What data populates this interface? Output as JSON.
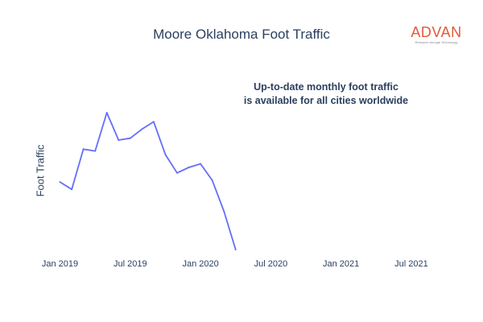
{
  "chart_data": {
    "type": "line",
    "title": "Moore Oklahoma Foot Traffic",
    "xlabel": "",
    "ylabel": "Foot Traffic",
    "x_ticks": [
      "Jan 2019",
      "Jul 2019",
      "Jan 2020",
      "Jul 2020",
      "Jan 2021",
      "Jul 2021"
    ],
    "xlim": [
      "2018-12-01",
      "2021-09-01"
    ],
    "grid": false,
    "annotation": [
      "Up-to-date monthly foot traffic",
      "is available for all cities worldwide"
    ],
    "series": [
      {
        "color": "#636efa",
        "x": [
          "2019-01",
          "2019-02",
          "2019-03",
          "2019-04",
          "2019-05",
          "2019-06",
          "2019-07",
          "2019-08",
          "2019-09",
          "2019-10",
          "2019-11",
          "2019-12",
          "2020-01",
          "2020-02",
          "2020-03",
          "2020-04"
        ],
        "values": [
          62,
          58,
          80,
          79,
          100,
          85,
          86,
          91,
          95,
          77,
          67,
          70,
          72,
          63,
          46,
          25
        ]
      }
    ]
  },
  "brand": {
    "name": "ADVAN",
    "tagline": "Research through Technology"
  }
}
